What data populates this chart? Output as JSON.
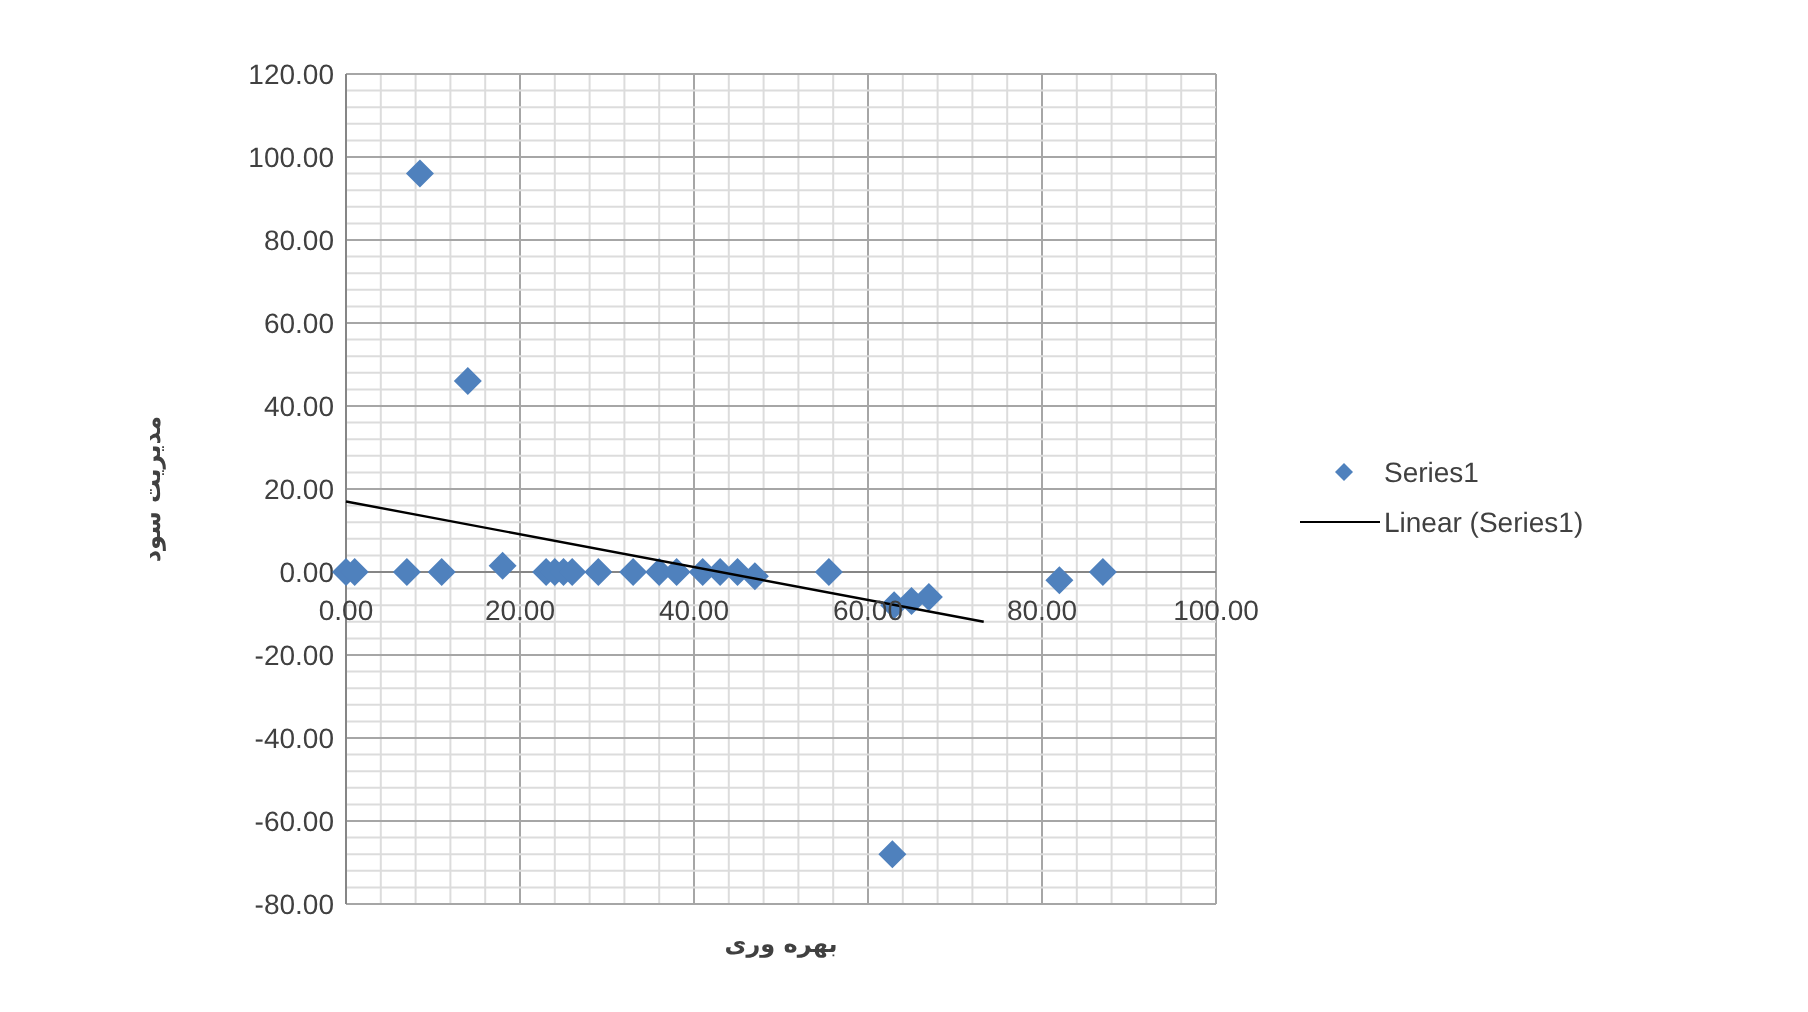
{
  "chart_data": {
    "type": "scatter",
    "xlabel": "بهره وری",
    "ylabel": "مدیریت سود",
    "xlim": [
      0,
      100
    ],
    "ylim": [
      -80,
      120
    ],
    "xticks": [
      {
        "value": 0,
        "label": "0.00"
      },
      {
        "value": 20,
        "label": "20.00"
      },
      {
        "value": 40,
        "label": "40.00"
      },
      {
        "value": 60,
        "label": "60.00"
      },
      {
        "value": 80,
        "label": "80.00"
      },
      {
        "value": 100,
        "label": "100.00"
      }
    ],
    "yticks": [
      {
        "value": -80,
        "label": "-80.00"
      },
      {
        "value": -60,
        "label": "-60.00"
      },
      {
        "value": -40,
        "label": "-40.00"
      },
      {
        "value": -20,
        "label": "-20.00"
      },
      {
        "value": 0,
        "label": "0.00"
      },
      {
        "value": 20,
        "label": "20.00"
      },
      {
        "value": 40,
        "label": "40.00"
      },
      {
        "value": 60,
        "label": "60.00"
      },
      {
        "value": 80,
        "label": "80.00"
      },
      {
        "value": 100,
        "label": "100.00"
      },
      {
        "value": 120,
        "label": "120.00"
      }
    ],
    "grid": true,
    "legend": "right",
    "series": [
      {
        "name": "Series1",
        "type": "scatter",
        "marker": "diamond",
        "color": "#4f81bd",
        "x": [
          0,
          1,
          7,
          8.5,
          11,
          14,
          18,
          23,
          24,
          25,
          26,
          29,
          33,
          36,
          38,
          41,
          43,
          45,
          47,
          55.5,
          62.8,
          63,
          65,
          67,
          82,
          87
        ],
        "values": [
          0,
          0,
          0,
          96,
          0,
          46,
          1.5,
          0,
          0,
          0,
          0,
          0,
          0,
          0,
          0,
          0,
          0,
          0,
          -1,
          0,
          -68,
          -8,
          -7,
          -6,
          -2,
          0
        ]
      },
      {
        "name": "Linear (Series1)",
        "type": "line",
        "marker": "none",
        "line_style": "solid",
        "color": "#000000",
        "x": [
          0,
          73.3
        ],
        "values": [
          17,
          -12
        ]
      }
    ]
  }
}
